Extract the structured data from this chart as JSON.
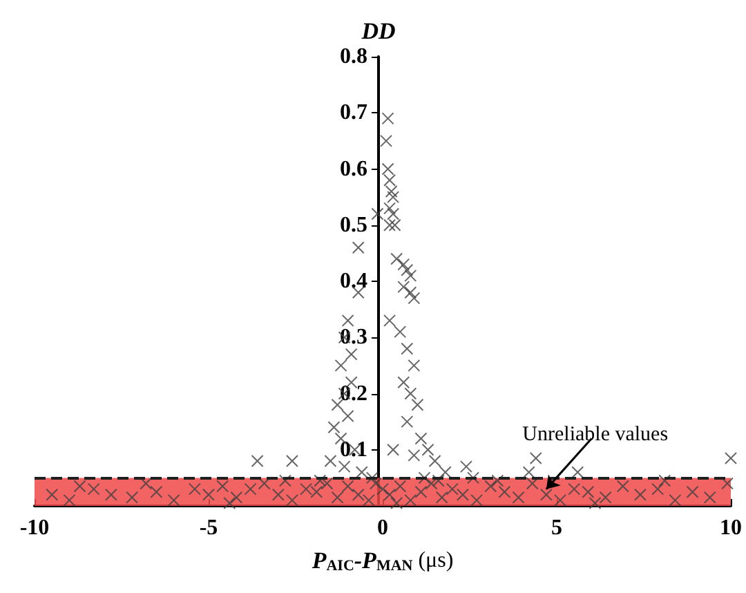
{
  "chart_data": {
    "type": "scatter",
    "ylabel": "DD",
    "xlabel": "P$_{AIC}$-P$_{MAN}$ (μs)",
    "xlim": [
      -10,
      10
    ],
    "xticks": [
      -10,
      -5,
      0,
      5,
      10
    ],
    "ylim": [
      0,
      0.8
    ],
    "yticks": [
      {
        "value": 0,
        "label": null
      },
      0.1,
      0.2,
      0.3,
      0.4,
      0.5,
      0.6,
      0.7,
      0.8
    ],
    "grid": false,
    "marker": "cross",
    "series": [
      {
        "color": "#404040",
        "x": [
          0.15,
          0.1,
          0.15,
          0.2,
          0.25,
          0.3,
          0.2,
          0.3,
          -0.15,
          0.2,
          0.35,
          -0.7,
          0.4,
          0.6,
          0.7,
          0.8,
          0.6,
          0.8,
          0.9,
          -0.7,
          0.2,
          0.5,
          0.7,
          0.9,
          0.6,
          0.8,
          1.0,
          0.7,
          1.1,
          1.3,
          0.9,
          1.5,
          1.8,
          1.2,
          2.4,
          2.6,
          4.4,
          4.2,
          5.6,
          10,
          -3.6,
          -2.6,
          -1.0,
          -1.1,
          -0.9,
          -1.2,
          -0.9,
          -1.1,
          -1.3,
          -1.0,
          -1.4,
          -1.2,
          -0.8,
          -1.5,
          -1.1,
          -0.6,
          0.3,
          -0.3,
          -9.5,
          -9.0,
          -8.3,
          -7.8,
          -7.2,
          -6.5,
          -6.0,
          -5.4,
          -5.0,
          -4.6,
          -4.2,
          -3.8,
          -3.4,
          -3.0,
          -2.6,
          -2.2,
          -1.9,
          -1.6,
          -1.3,
          -1.0,
          -0.7,
          -0.4,
          -0.2,
          0.0,
          0.2,
          0.5,
          0.8,
          1.1,
          1.4,
          1.7,
          2.0,
          2.3,
          2.7,
          3.1,
          3.5,
          3.9,
          4.3,
          4.7,
          5.1,
          5.5,
          5.9,
          6.4,
          6.9,
          7.4,
          7.9,
          8.4,
          8.9,
          9.4,
          9.9,
          -8.7,
          -6.8,
          -4.4,
          -2.8,
          -1.8,
          0.4,
          1.6,
          3.3,
          6.1,
          8.1
        ],
        "values": [
          0.69,
          0.65,
          0.6,
          0.58,
          0.56,
          0.55,
          0.53,
          0.52,
          0.52,
          0.5,
          0.5,
          0.46,
          0.44,
          0.43,
          0.42,
          0.41,
          0.39,
          0.38,
          0.37,
          0.38,
          0.33,
          0.31,
          0.28,
          0.25,
          0.22,
          0.2,
          0.18,
          0.15,
          0.12,
          0.1,
          0.09,
          0.08,
          0.06,
          0.05,
          0.07,
          0.05,
          0.085,
          0.06,
          0.06,
          0.085,
          0.08,
          0.08,
          0.33,
          0.3,
          0.27,
          0.25,
          0.22,
          0.2,
          0.18,
          0.16,
          0.14,
          0.12,
          0.1,
          0.08,
          0.07,
          0.06,
          0.1,
          0.05,
          0.02,
          0.01,
          0.03,
          0.02,
          0.015,
          0.025,
          0.01,
          0.03,
          0.02,
          0.035,
          0.015,
          0.03,
          0.04,
          0.02,
          0.01,
          0.03,
          0.025,
          0.04,
          0.015,
          0.035,
          0.02,
          0.01,
          0.04,
          0.03,
          0.02,
          0.035,
          0.01,
          0.025,
          0.04,
          0.015,
          0.03,
          0.02,
          0.01,
          0.035,
          0.025,
          0.015,
          0.04,
          0.02,
          0.01,
          0.03,
          0.025,
          0.015,
          0.035,
          0.02,
          0.03,
          0.01,
          0.025,
          0.015,
          0.04,
          0.035,
          0.04,
          0.005,
          0.045,
          0.045,
          0.005,
          0.045,
          0.045,
          0.005,
          0.045
        ]
      }
    ],
    "bands": [
      {
        "axis": "y",
        "from": 0,
        "to": 0.05,
        "color": "#f04848"
      }
    ],
    "ref_lines": [
      {
        "axis": "y",
        "value": 0.05,
        "line_style": "dashed",
        "color": "#202020"
      }
    ],
    "annotations": [
      {
        "text": "Unreliable values",
        "x": 4.7,
        "y": 0.03
      }
    ]
  }
}
